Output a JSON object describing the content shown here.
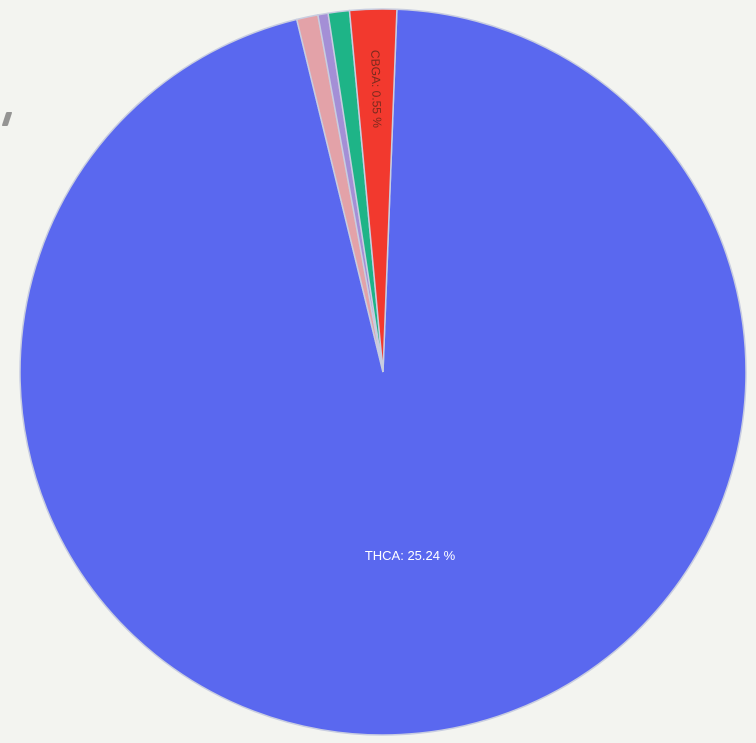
{
  "chart_data": {
    "type": "pie",
    "title": "",
    "slices": [
      {
        "label": "THCA",
        "value": 25.24,
        "unit": "%",
        "color": "#5a68ef",
        "text": "THCA: 25.24 %",
        "legible": true
      },
      {
        "label": "",
        "value": 0.25,
        "unit": "%",
        "color": "#e3a2a8",
        "text": "",
        "legible": false
      },
      {
        "label": "",
        "value": 0.12,
        "unit": "%",
        "color": "#a48fd6",
        "text": "",
        "legible": false
      },
      {
        "label": "",
        "value": 0.25,
        "unit": "%",
        "color": "#1eb487",
        "text": "",
        "legible": false
      },
      {
        "label": "CBGA",
        "value": 0.55,
        "unit": "%",
        "color": "#f2392e",
        "text": "CBGA: 0.55 %",
        "legible": true
      }
    ],
    "legend": "none",
    "slice_border_color": "#c8cde0"
  }
}
